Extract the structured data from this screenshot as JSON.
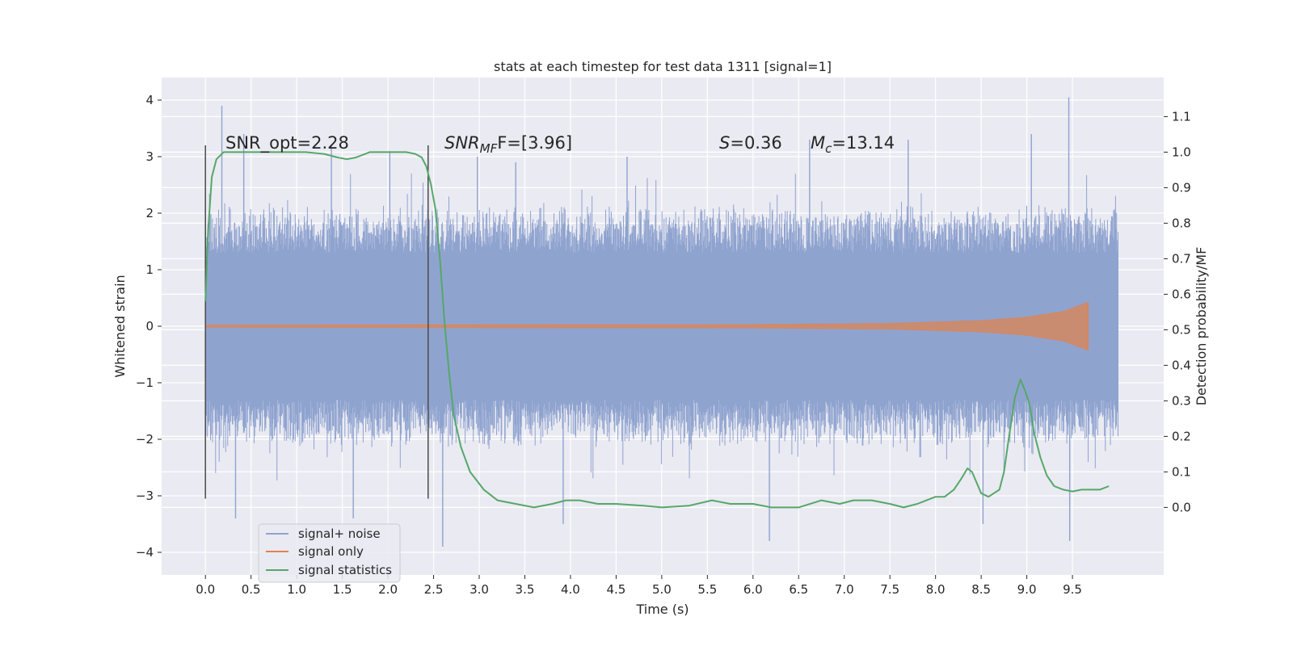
{
  "chart_data": {
    "type": "line",
    "title": "stats at each timestep for test data 1311 [signal=1]",
    "xlabel": "Time (s)",
    "ylabel": "Whitened strain",
    "y2label": "Detection probability/MF",
    "xlim": [
      -0.48,
      10.5
    ],
    "ylim": [
      -4.4,
      4.4
    ],
    "y2lim": [
      -0.19,
      1.21
    ],
    "xticks": [
      0.0,
      0.5,
      1.0,
      1.5,
      2.0,
      2.5,
      3.0,
      3.5,
      4.0,
      4.5,
      5.0,
      5.5,
      6.0,
      6.5,
      7.0,
      7.5,
      8.0,
      8.5,
      9.0,
      9.5
    ],
    "xtick_labels": [
      "0.0",
      "0.5",
      "1.0",
      "1.5",
      "2.0",
      "2.5",
      "3.0",
      "3.5",
      "4.0",
      "4.5",
      "5.0",
      "5.5",
      "6.0",
      "6.5",
      "7.0",
      "7.5",
      "8.0",
      "8.5",
      "9.0",
      "9.5"
    ],
    "yticks": [
      -4,
      -3,
      -2,
      -1,
      0,
      1,
      2,
      3,
      4
    ],
    "ytick_labels": [
      "−4",
      "−3",
      "−2",
      "−1",
      "0",
      "1",
      "2",
      "3",
      "4"
    ],
    "y2ticks": [
      0.0,
      0.1,
      0.2,
      0.3,
      0.4,
      0.5,
      0.6,
      0.7,
      0.8,
      0.9,
      1.0,
      1.1
    ],
    "y2tick_labels": [
      "0.0",
      "0.1",
      "0.2",
      "0.3",
      "0.4",
      "0.5",
      "0.6",
      "0.7",
      "0.8",
      "0.9",
      "1.0",
      "1.1"
    ],
    "grid": true,
    "legend_position": "lower-left",
    "vertical_lines_x": [
      0.0,
      2.44
    ],
    "vertical_lines_y": [
      -3.05,
      3.2
    ],
    "annotations": {
      "snr_opt": "SNR_opt=2.28",
      "snr_mf_italic": "SNR",
      "snr_mf_sub": "MF",
      "snr_mf_rest": "F=[3.96]",
      "s_italic": "S",
      "s_rest": "=0.36",
      "mc_italic": "M",
      "mc_sub": "c",
      "mc_rest": "=13.14"
    },
    "series": [
      {
        "name": "signal+ noise",
        "axis": "left",
        "color": "#8fa3cf",
        "x_range": [
          0.0,
          10.0
        ],
        "band": [
          -1.3,
          1.3
        ],
        "typical_max": 2.2,
        "typical_min": -2.2,
        "spikes": [
          [
            0.18,
            3.9
          ],
          [
            0.42,
            3.4
          ],
          [
            1.38,
            3.2
          ],
          [
            2.02,
            3.1
          ],
          [
            2.98,
            3.0
          ],
          [
            3.4,
            2.9
          ],
          [
            4.62,
            3.0
          ],
          [
            6.62,
            3.3
          ],
          [
            7.7,
            3.3
          ],
          [
            9.05,
            3.4
          ],
          [
            9.46,
            4.05
          ],
          [
            0.33,
            -3.4
          ],
          [
            1.62,
            -3.4
          ],
          [
            2.6,
            -3.9
          ],
          [
            3.92,
            -3.5
          ],
          [
            6.18,
            -3.8
          ],
          [
            8.52,
            -3.5
          ],
          [
            9.47,
            -3.8
          ]
        ]
      },
      {
        "name": "signal only",
        "axis": "left",
        "color": "#dd8452",
        "x_range": [
          0.0,
          9.67
        ],
        "envelope": [
          [
            0.0,
            0.02
          ],
          [
            6.0,
            0.03
          ],
          [
            7.5,
            0.05
          ],
          [
            8.5,
            0.1
          ],
          [
            9.0,
            0.16
          ],
          [
            9.4,
            0.26
          ],
          [
            9.6,
            0.38
          ],
          [
            9.67,
            0.42
          ]
        ]
      },
      {
        "name": "signal statistics",
        "axis": "right",
        "color": "#55a868",
        "x": [
          0.0,
          0.03,
          0.07,
          0.12,
          0.16,
          0.2,
          0.3,
          0.5,
          0.8,
          1.1,
          1.3,
          1.45,
          1.55,
          1.65,
          1.8,
          2.0,
          2.2,
          2.3,
          2.37,
          2.42,
          2.47,
          2.52,
          2.57,
          2.62,
          2.67,
          2.72,
          2.8,
          2.9,
          3.05,
          3.2,
          3.4,
          3.6,
          3.8,
          3.95,
          4.1,
          4.3,
          4.5,
          4.8,
          5.0,
          5.3,
          5.55,
          5.75,
          6.0,
          6.2,
          6.5,
          6.75,
          6.95,
          7.1,
          7.3,
          7.5,
          7.65,
          7.8,
          7.9,
          8.0,
          8.1,
          8.2,
          8.28,
          8.35,
          8.4,
          8.45,
          8.5,
          8.58,
          8.64,
          8.7,
          8.75,
          8.8,
          8.87,
          8.93,
          8.98,
          9.03,
          9.08,
          9.15,
          9.22,
          9.3,
          9.4,
          9.5,
          9.6,
          9.7,
          9.8,
          9.9
        ],
        "values": [
          0.58,
          0.78,
          0.93,
          0.98,
          0.99,
          1.0,
          1.0,
          1.0,
          1.0,
          1.0,
          0.995,
          0.985,
          0.98,
          0.985,
          1.0,
          1.0,
          1.0,
          0.995,
          0.985,
          0.96,
          0.91,
          0.84,
          0.7,
          0.52,
          0.38,
          0.26,
          0.17,
          0.1,
          0.05,
          0.02,
          0.01,
          0.0,
          0.01,
          0.02,
          0.02,
          0.01,
          0.01,
          0.005,
          0.0,
          0.005,
          0.02,
          0.01,
          0.01,
          0.0,
          0.0,
          0.02,
          0.01,
          0.02,
          0.02,
          0.01,
          0.0,
          0.01,
          0.02,
          0.03,
          0.03,
          0.05,
          0.08,
          0.11,
          0.1,
          0.07,
          0.04,
          0.03,
          0.04,
          0.05,
          0.1,
          0.19,
          0.31,
          0.36,
          0.33,
          0.29,
          0.21,
          0.14,
          0.09,
          0.06,
          0.05,
          0.045,
          0.05,
          0.05,
          0.05,
          0.06
        ]
      }
    ]
  }
}
